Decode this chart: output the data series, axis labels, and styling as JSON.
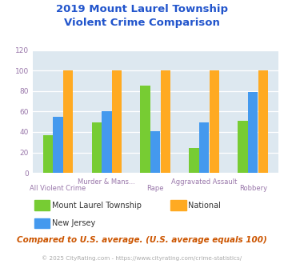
{
  "title": "2019 Mount Laurel Township\nViolent Crime Comparison",
  "title_color": "#2255cc",
  "categories": [
    "All Violent Crime",
    "Murder & Mans...",
    "Rape",
    "Aggravated Assault",
    "Robbery"
  ],
  "series": {
    "Mount Laurel Township": [
      37,
      49,
      85,
      24,
      51
    ],
    "New Jersey": [
      55,
      60,
      41,
      49,
      79
    ],
    "National": [
      100,
      100,
      100,
      100,
      100
    ]
  },
  "colors": {
    "Mount Laurel Township": "#77cc33",
    "New Jersey": "#4499ee",
    "National": "#ffaa22"
  },
  "ylim": [
    0,
    120
  ],
  "yticks": [
    0,
    20,
    40,
    60,
    80,
    100,
    120
  ],
  "plot_area_color": "#dde8f0",
  "fig_background": "#ffffff",
  "xlabel_color": "#9977aa",
  "footer_note": "Compared to U.S. average. (U.S. average equals 100)",
  "footer_note_color": "#cc5500",
  "copyright": "© 2025 CityRating.com - https://www.cityrating.com/crime-statistics/",
  "copyright_color": "#aaaaaa",
  "ytick_color": "#9977aa"
}
